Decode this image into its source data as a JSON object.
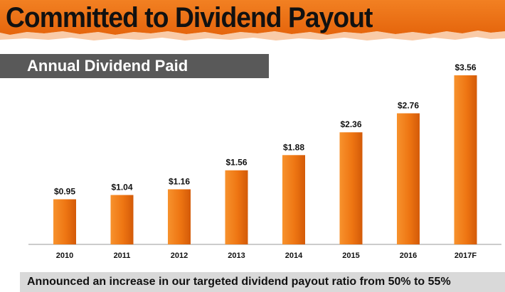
{
  "title": "Committed to Dividend Payout",
  "subtitle": "Annual Dividend Paid",
  "footer_note": "Announced an increase in our targeted dividend payout ratio from 50% to 55%",
  "colors": {
    "accent": "#ED7014",
    "bar_light": "#F7922D",
    "bar_dark": "#D35A08",
    "subtitle_bg": "#595959",
    "footer_bg": "#D9D9D9"
  },
  "chart_data": {
    "type": "bar",
    "title": "Annual Dividend Paid",
    "categories": [
      "2010",
      "2011",
      "2012",
      "2013",
      "2014",
      "2015",
      "2016",
      "2017F"
    ],
    "values": [
      0.95,
      1.04,
      1.16,
      1.56,
      1.88,
      2.36,
      2.76,
      3.56
    ],
    "data_labels": [
      "$0.95",
      "$1.04",
      "$1.16",
      "$1.56",
      "$1.88",
      "$2.36",
      "$2.76",
      "$3.56"
    ],
    "xlabel": "",
    "ylabel": "",
    "ylim": [
      0,
      3.56
    ],
    "grid": false,
    "legend": "none"
  }
}
